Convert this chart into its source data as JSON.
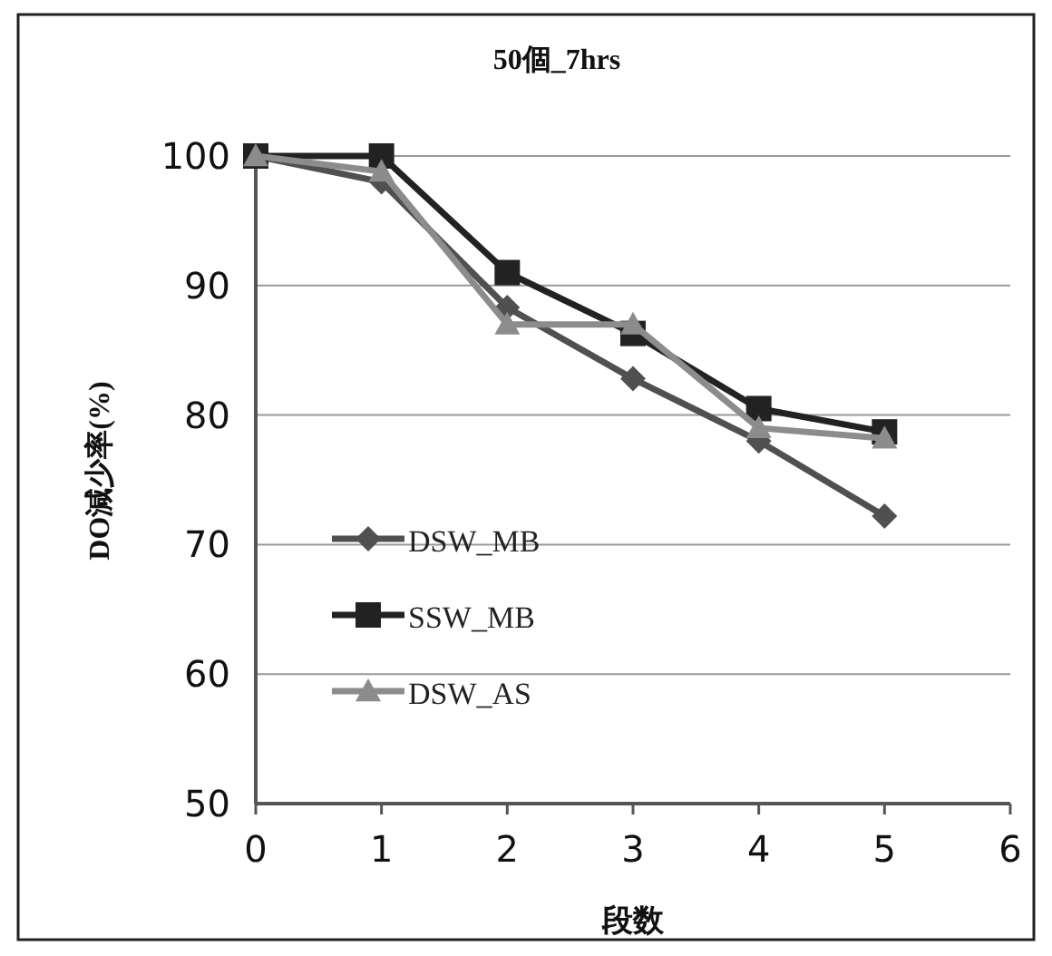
{
  "chart_data": {
    "type": "line",
    "title": "50個_7hrs",
    "xlabel": "段数",
    "ylabel": "DO減少率(%)",
    "x": [
      0,
      1,
      2,
      3,
      4,
      5
    ],
    "series": [
      {
        "name": "DSW_MB",
        "color": "#505050",
        "marker": "diamond",
        "values": [
          100,
          98,
          88.3,
          82.8,
          78,
          72.2
        ]
      },
      {
        "name": "SSW_MB",
        "color": "#222222",
        "marker": "square",
        "values": [
          100,
          100,
          91,
          86.3,
          80.5,
          78.7
        ]
      },
      {
        "name": "DSW_AS",
        "color": "#8c8c8c",
        "marker": "triangle",
        "values": [
          100,
          98.8,
          87,
          87,
          79,
          78.2
        ]
      }
    ],
    "xlim": [
      0,
      6
    ],
    "xticks": [
      0,
      1,
      2,
      3,
      4,
      5,
      6
    ],
    "ylim": [
      50,
      100
    ],
    "yticks": [
      50,
      60,
      70,
      80,
      90,
      100
    ],
    "grid": "y",
    "legend": "bottom left",
    "line_style": "solid"
  }
}
